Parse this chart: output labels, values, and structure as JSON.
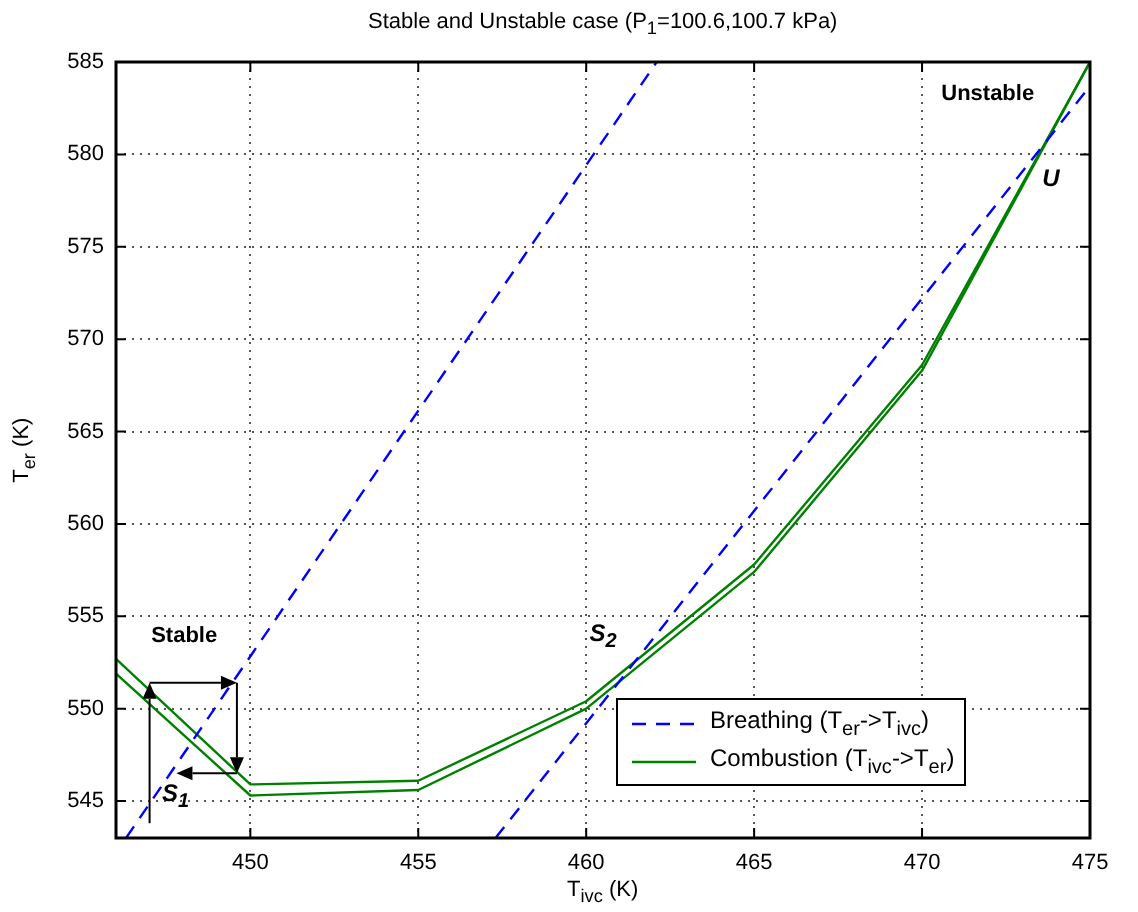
{
  "chart_data": {
    "type": "line",
    "title": "Stable and Unstable case (P$_{1}$=100.6,100.7 kPa)",
    "xlabel": "T$_{ivc}$ (K)",
    "ylabel": "T$_{er}$ (K)",
    "series": [
      {
        "name": "Breathing (T$_{er}$->T$_{ivc}$)",
        "color": "#0000ff",
        "line_style": "dashed",
        "x": [
          446.3,
          462.1
        ],
        "values": [
          543,
          585
        ]
      },
      {
        "color": "#0000ff",
        "line_style": "dashed",
        "x": [
          457.3,
          475
        ],
        "values": [
          543,
          583.7
        ]
      },
      {
        "name": "Combustion (T$_{ivc}$->T$_{er}$)",
        "color": "#008000",
        "line_style": "solid",
        "x": [
          446,
          450,
          455,
          460,
          465,
          470,
          475
        ],
        "values": [
          552.7,
          545.9,
          546.1,
          550.4,
          557.8,
          568.6,
          585
        ]
      },
      {
        "color": "#008000",
        "line_style": "solid",
        "x": [
          446,
          450,
          455,
          460,
          465,
          470,
          475
        ],
        "values": [
          551.9,
          545.3,
          545.6,
          550.0,
          557.4,
          568.3,
          585
        ]
      }
    ],
    "xlim": [
      446,
      475
    ],
    "xticks": [
      450,
      455,
      460,
      465,
      470,
      475
    ],
    "ylim": [
      543,
      585
    ],
    "yticks": [
      545,
      550,
      555,
      560,
      565,
      570,
      575,
      580,
      585
    ],
    "grid": true,
    "legend": "bottom right",
    "marker": "none",
    "annotations": [
      "Stable",
      "Unstable",
      {
        "text": "S$_{1}$",
        "x": 448.25,
        "y": 548.2
      },
      "S$_{2}$",
      "U"
    ]
  }
}
